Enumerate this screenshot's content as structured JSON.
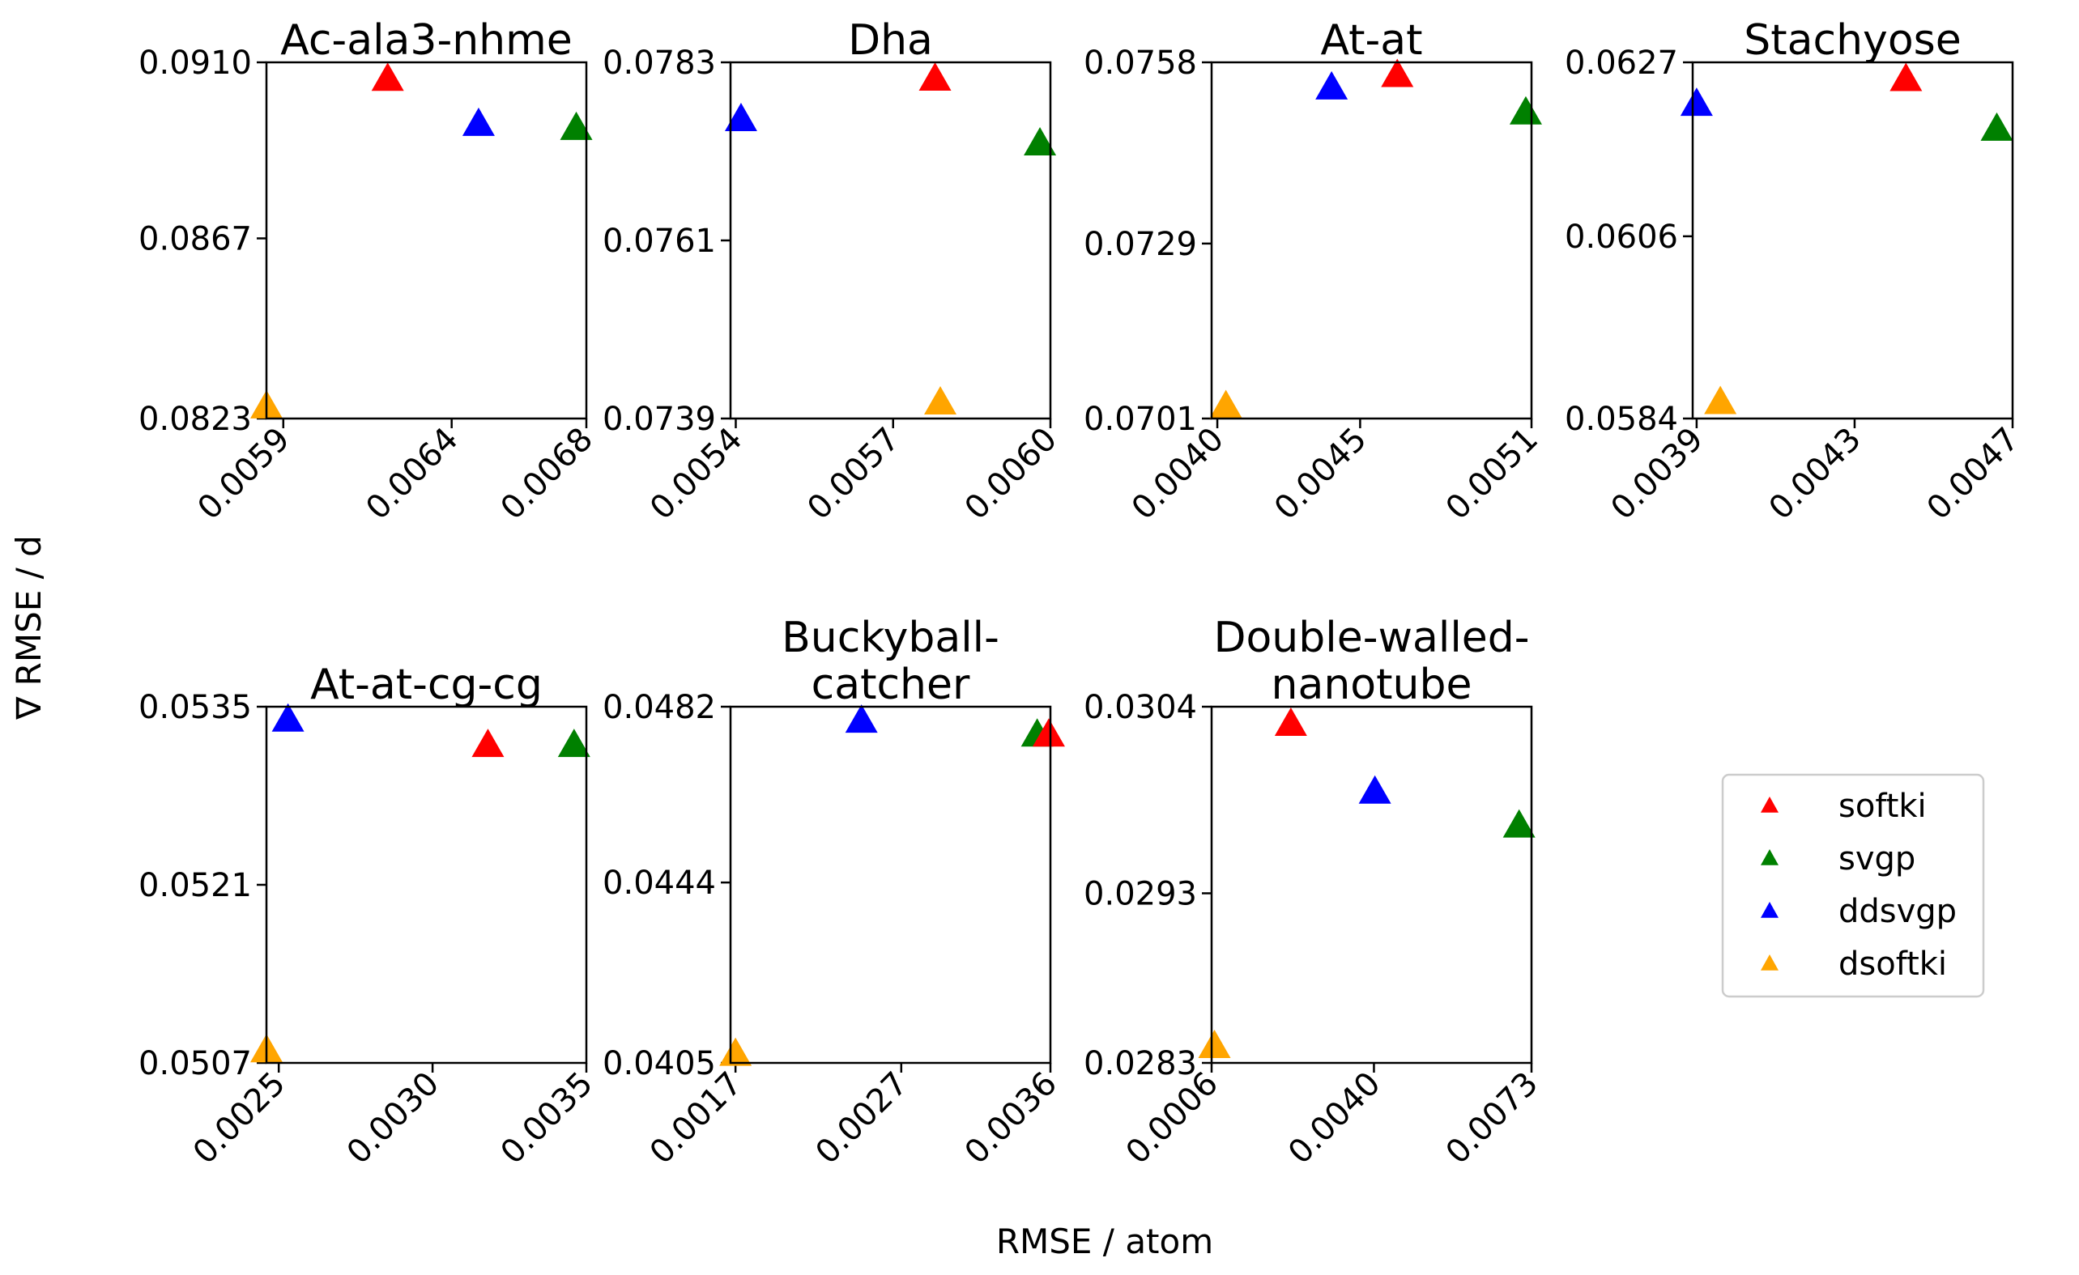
{
  "chart_data": {
    "type": "scatter",
    "marker": "triangle",
    "xlabel": "RMSE / atom",
    "ylabel": "∇ RMSE / d",
    "legend": {
      "placement": "right, lower row",
      "entries": [
        {
          "name": "softki",
          "color": "#ff0000"
        },
        {
          "name": "svgp",
          "color": "#008000"
        },
        {
          "name": "ddsvgp",
          "color": "#0000ff"
        },
        {
          "name": "dsoftki",
          "color": "#ffa500"
        }
      ]
    },
    "subplots": [
      {
        "title_lines": [
          "Ac-ala3-nhme"
        ],
        "xlim": [
          0.00585,
          0.0068
        ],
        "ylim": [
          0.0823,
          0.091
        ],
        "xticks": [
          0.0059,
          0.0064,
          0.0068
        ],
        "xtick_labels": [
          "0.0059",
          "0.0064",
          "0.0068"
        ],
        "yticks": [
          0.0823,
          0.0867,
          0.091
        ],
        "ytick_labels": [
          "0.0823",
          "0.0867",
          "0.0910"
        ],
        "points": [
          {
            "series": "softki",
            "x": 0.00621,
            "y": 0.0906
          },
          {
            "series": "ddsvgp",
            "x": 0.00648,
            "y": 0.0895
          },
          {
            "series": "svgp",
            "x": 0.00677,
            "y": 0.0894
          },
          {
            "series": "dsoftki",
            "x": 0.00585,
            "y": 0.0826
          }
        ]
      },
      {
        "title_lines": [
          "Dha"
        ],
        "xlim": [
          0.00539,
          0.006
        ],
        "ylim": [
          0.0739,
          0.0783
        ],
        "xticks": [
          0.0054,
          0.0057,
          0.006
        ],
        "xtick_labels": [
          "0.0054",
          "0.0057",
          "0.0060"
        ],
        "yticks": [
          0.0739,
          0.0761,
          0.0783
        ],
        "ytick_labels": [
          "0.0739",
          "0.0761",
          "0.0783"
        ],
        "points": [
          {
            "series": "ddsvgp",
            "x": 0.00541,
            "y": 0.0776
          },
          {
            "series": "softki",
            "x": 0.00578,
            "y": 0.0781
          },
          {
            "series": "svgp",
            "x": 0.00598,
            "y": 0.0773
          },
          {
            "series": "dsoftki",
            "x": 0.00579,
            "y": 0.0741
          }
        ]
      },
      {
        "title_lines": [
          "At-at"
        ],
        "xlim": [
          0.00398,
          0.0051
        ],
        "ylim": [
          0.0701,
          0.0758
        ],
        "xticks": [
          0.004,
          0.0045,
          0.0051
        ],
        "xtick_labels": [
          "0.0040",
          "0.0045",
          "0.0051"
        ],
        "yticks": [
          0.0701,
          0.0729,
          0.0758
        ],
        "ytick_labels": [
          "0.0701",
          "0.0729",
          "0.0758"
        ],
        "points": [
          {
            "series": "ddsvgp",
            "x": 0.0044,
            "y": 0.0754
          },
          {
            "series": "softki",
            "x": 0.00463,
            "y": 0.0756
          },
          {
            "series": "svgp",
            "x": 0.00508,
            "y": 0.075
          },
          {
            "series": "dsoftki",
            "x": 0.00403,
            "y": 0.0703
          }
        ]
      },
      {
        "title_lines": [
          "Stachyose"
        ],
        "xlim": [
          0.00389,
          0.0047
        ],
        "ylim": [
          0.0584,
          0.0627
        ],
        "xticks": [
          0.0039,
          0.0043,
          0.0047
        ],
        "xtick_labels": [
          "0.0039",
          "0.0043",
          "0.0047"
        ],
        "yticks": [
          0.0584,
          0.0606,
          0.0627
        ],
        "ytick_labels": [
          "0.0584",
          "0.0606",
          "0.0627"
        ],
        "points": [
          {
            "series": "ddsvgp",
            "x": 0.0039,
            "y": 0.0622
          },
          {
            "series": "softki",
            "x": 0.00443,
            "y": 0.0625
          },
          {
            "series": "svgp",
            "x": 0.00466,
            "y": 0.0619
          },
          {
            "series": "dsoftki",
            "x": 0.00396,
            "y": 0.0586
          }
        ]
      },
      {
        "title_lines": [
          "At-at-cg-cg"
        ],
        "xlim": [
          0.00246,
          0.0035
        ],
        "ylim": [
          0.0507,
          0.0535
        ],
        "xticks": [
          0.0025,
          0.003,
          0.0035
        ],
        "xtick_labels": [
          "0.0025",
          "0.0030",
          "0.0035"
        ],
        "yticks": [
          0.0507,
          0.0521,
          0.0535
        ],
        "ytick_labels": [
          "0.0507",
          "0.0521",
          "0.0535"
        ],
        "points": [
          {
            "series": "ddsvgp",
            "x": 0.00253,
            "y": 0.0534
          },
          {
            "series": "softki",
            "x": 0.00318,
            "y": 0.0532
          },
          {
            "series": "svgp",
            "x": 0.00346,
            "y": 0.0532
          },
          {
            "series": "dsoftki",
            "x": 0.00246,
            "y": 0.0508
          }
        ]
      },
      {
        "title_lines": [
          "Buckyball-",
          "catcher"
        ],
        "xlim": [
          0.00167,
          0.0036
        ],
        "ylim": [
          0.0405,
          0.0482
        ],
        "xticks": [
          0.0017,
          0.0027,
          0.0036
        ],
        "xtick_labels": [
          "0.0017",
          "0.0027",
          "0.0036"
        ],
        "yticks": [
          0.0405,
          0.0444,
          0.0482
        ],
        "ytick_labels": [
          "0.0405",
          "0.0444",
          "0.0482"
        ],
        "points": [
          {
            "series": "ddsvgp",
            "x": 0.00246,
            "y": 0.0479
          },
          {
            "series": "svgp",
            "x": 0.00352,
            "y": 0.0476
          },
          {
            "series": "softki",
            "x": 0.00359,
            "y": 0.0476
          },
          {
            "series": "dsoftki",
            "x": 0.0017,
            "y": 0.0407
          }
        ]
      },
      {
        "title_lines": [
          "Double-walled-",
          "nanotube"
        ],
        "xlim": [
          0.0006,
          0.0073
        ],
        "ylim": [
          0.0283,
          0.0304
        ],
        "xticks": [
          0.0006,
          0.004,
          0.0073
        ],
        "xtick_labels": [
          "0.0006",
          "0.0040",
          "0.0073"
        ],
        "yticks": [
          0.0283,
          0.0293,
          0.0304
        ],
        "ytick_labels": [
          "0.0283",
          "0.0293",
          "0.0304"
        ],
        "points": [
          {
            "series": "softki",
            "x": 0.00226,
            "y": 0.0303
          },
          {
            "series": "ddsvgp",
            "x": 0.00402,
            "y": 0.0299
          },
          {
            "series": "svgp",
            "x": 0.00704,
            "y": 0.0297
          },
          {
            "series": "dsoftki",
            "x": 0.00066,
            "y": 0.0284
          }
        ]
      }
    ]
  }
}
